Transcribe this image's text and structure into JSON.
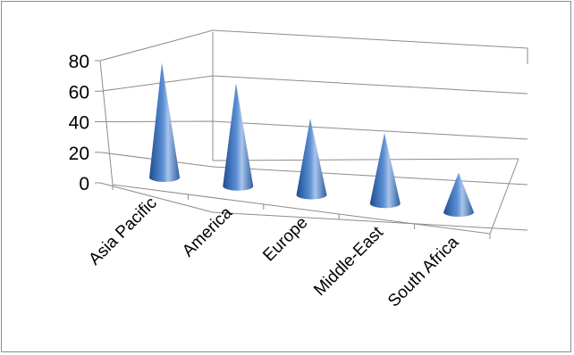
{
  "chart_data": {
    "type": "bar",
    "subtype": "3d-cone",
    "categories": [
      "Asia Pacific",
      "America",
      "Europe",
      "Middle-East",
      "South Africa"
    ],
    "series": [
      {
        "values": [
          78,
          70,
          52,
          48,
          27
        ]
      }
    ],
    "ylim": [
      0,
      80
    ],
    "yticks": [
      0,
      20,
      40,
      60,
      80
    ],
    "gridlines": true,
    "legend": "none",
    "colors": {
      "cone_dark": "#1f4e8f",
      "cone_mid": "#4f81bd",
      "cone_light": "#a9c4ea",
      "grid": "#8c8c8c"
    }
  }
}
